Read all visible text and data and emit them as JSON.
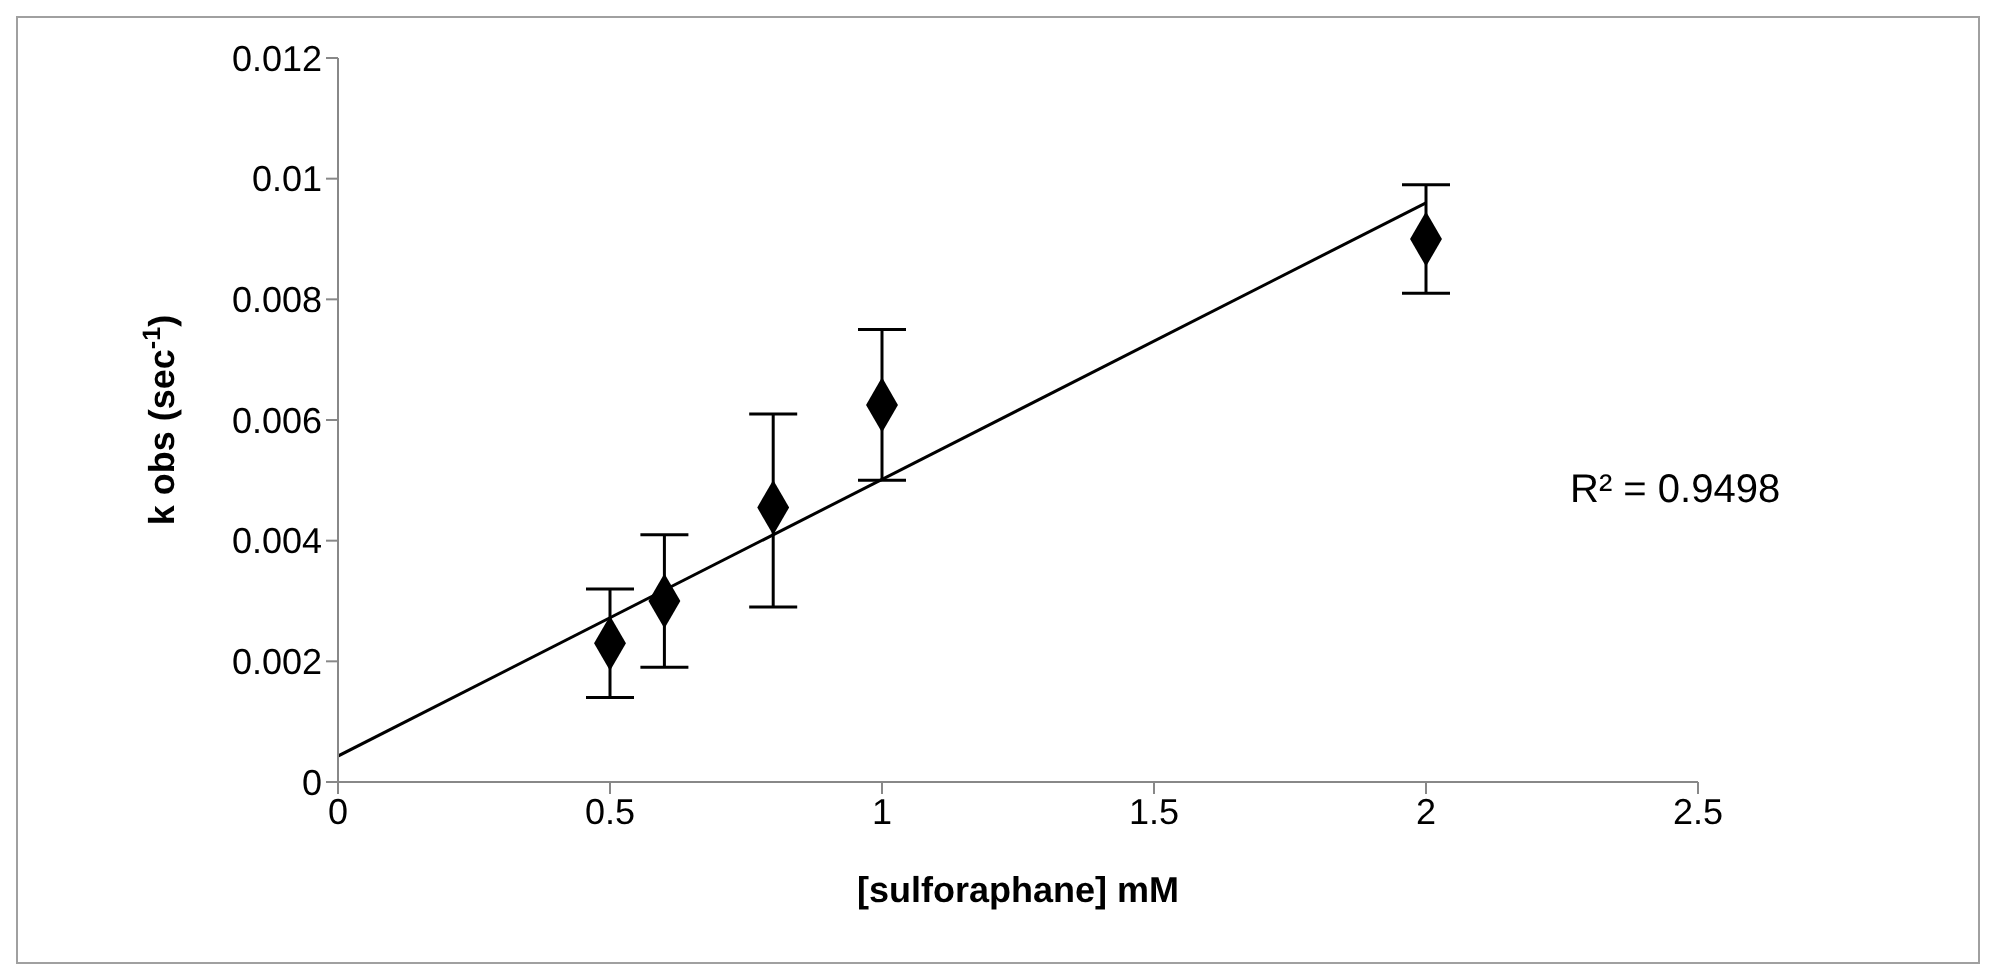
{
  "chart_data": {
    "type": "scatter",
    "xlabel": "[sulforaphane] mM",
    "ylabel": "k obs (sec$^{-1}$)",
    "annotations": [
      "R² = 0.9498"
    ],
    "xlim": [
      0,
      2.5
    ],
    "xticks": [
      0,
      0.5,
      1,
      1.5,
      2,
      2.5
    ],
    "ylim": [
      0,
      0.012
    ],
    "yticks": [
      0,
      0.002,
      0.004,
      0.006,
      0.008,
      0.01,
      0.012
    ],
    "grid": false,
    "legend": false,
    "series": [
      {
        "color": "#000000",
        "marker": "diamond",
        "x": [
          0.5,
          0.6,
          0.8,
          1,
          2
        ],
        "values": [
          0.0023,
          0.003,
          0.00455,
          0.00625,
          0.009
        ],
        "errors": [
          [
            0.0014,
            0.0032
          ],
          [
            0.0019,
            0.0041
          ],
          [
            0.0029,
            0.0061
          ],
          [
            0.005,
            0.0075
          ],
          [
            0.0081,
            0.0099
          ]
        ]
      },
      {
        "type": "line",
        "color": "#000000",
        "x": [
          0,
          2
        ],
        "values": [
          0.00043,
          0.0096
        ]
      }
    ]
  }
}
